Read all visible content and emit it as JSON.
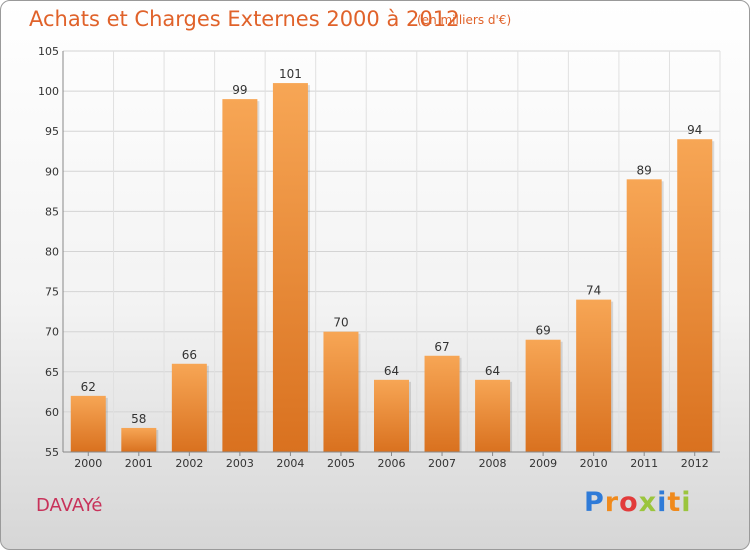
{
  "header": {
    "title": "Achats et Charges Externes 2000 à 2012",
    "unit_note": "(en milliers d'€)"
  },
  "footer": {
    "commune": "DAVAYé",
    "brand_letters": [
      "P",
      "r",
      "o",
      "x",
      "i",
      "t",
      "i"
    ],
    "brand_colors": [
      "#2f7bd8",
      "#f08a1c",
      "#e23b3b",
      "#9bc53d",
      "#2f7bd8",
      "#f08a1c",
      "#9bc53d"
    ]
  },
  "chart_data": {
    "type": "bar",
    "title": "Achats et Charges Externes 2000 à 2012",
    "subtitle": "(en milliers d'€)",
    "categories": [
      "2000",
      "2001",
      "2002",
      "2003",
      "2004",
      "2005",
      "2006",
      "2007",
      "2008",
      "2009",
      "2010",
      "2011",
      "2012"
    ],
    "values": [
      62,
      58,
      66,
      99,
      101,
      70,
      64,
      67,
      64,
      69,
      74,
      89,
      94
    ],
    "value_labels": [
      "62",
      "58",
      "66",
      "99",
      "101",
      "70",
      "64",
      "67",
      "64",
      "69",
      "74",
      "89",
      "94"
    ],
    "ylim": [
      55,
      105
    ],
    "yticks": [
      55,
      60,
      65,
      70,
      75,
      80,
      85,
      90,
      95,
      100,
      105
    ],
    "grid": true,
    "bar_color_top": "#f7a655",
    "bar_color_bottom": "#d9711f",
    "text_color": "#333333"
  }
}
